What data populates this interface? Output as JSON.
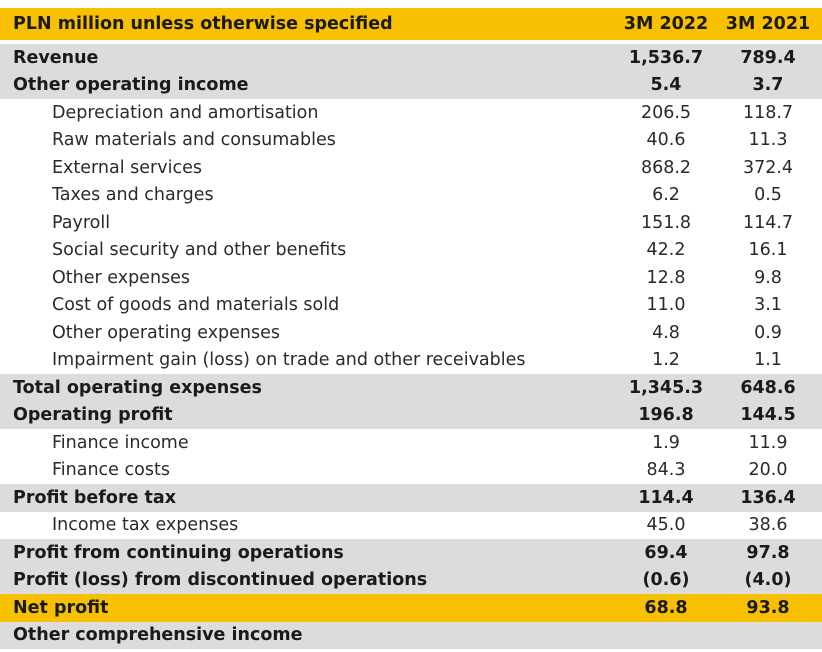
{
  "header": {
    "label": "PLN million unless otherwise specified",
    "col1": "3M 2022",
    "col2": "3M 2021"
  },
  "rows": [
    {
      "label": "Revenue",
      "v1": "1,536.7",
      "v2": "789.4",
      "style": "bold"
    },
    {
      "label": "Other operating income",
      "v1": "5.4",
      "v2": "3.7",
      "style": "bold"
    },
    {
      "label": "Depreciation and amortisation",
      "v1": "206.5",
      "v2": "118.7",
      "style": "sub"
    },
    {
      "label": "Raw materials and consumables",
      "v1": "40.6",
      "v2": "11.3",
      "style": "sub"
    },
    {
      "label": "External services",
      "v1": "868.2",
      "v2": "372.4",
      "style": "sub"
    },
    {
      "label": "Taxes and charges",
      "v1": "6.2",
      "v2": "0.5",
      "style": "sub"
    },
    {
      "label": "Payroll",
      "v1": "151.8",
      "v2": "114.7",
      "style": "sub"
    },
    {
      "label": "Social security and other benefits",
      "v1": "42.2",
      "v2": "16.1",
      "style": "sub"
    },
    {
      "label": "Other expenses",
      "v1": "12.8",
      "v2": "9.8",
      "style": "sub"
    },
    {
      "label": "Cost of goods and materials sold",
      "v1": "11.0",
      "v2": "3.1",
      "style": "sub"
    },
    {
      "label": "Other operating expenses",
      "v1": "4.8",
      "v2": "0.9",
      "style": "sub"
    },
    {
      "label": "Impairment gain (loss) on trade and other receivables",
      "v1": "1.2",
      "v2": "1.1",
      "style": "sub"
    },
    {
      "label": "Total operating expenses",
      "v1": "1,345.3",
      "v2": "648.6",
      "style": "bold"
    },
    {
      "label": "Operating profit",
      "v1": "196.8",
      "v2": "144.5",
      "style": "bold"
    },
    {
      "label": "Finance income",
      "v1": "1.9",
      "v2": "11.9",
      "style": "sub"
    },
    {
      "label": "Finance costs",
      "v1": "84.3",
      "v2": "20.0",
      "style": "sub"
    },
    {
      "label": "Profit before tax",
      "v1": "114.4",
      "v2": "136.4",
      "style": "bold"
    },
    {
      "label": "Income tax expenses",
      "v1": "45.0",
      "v2": "38.6",
      "style": "sub"
    },
    {
      "label": "Profit from continuing operations",
      "v1": "69.4",
      "v2": "97.8",
      "style": "bold"
    },
    {
      "label": "Profit (loss) from discontinued operations",
      "v1": "(0.6)",
      "v2": "(4.0)",
      "style": "bold"
    },
    {
      "label": "Net profit",
      "v1": "68.8",
      "v2": "93.8",
      "style": "highlight"
    },
    {
      "label": "Other comprehensive income",
      "v1": "",
      "v2": "",
      "style": "bold"
    }
  ]
}
